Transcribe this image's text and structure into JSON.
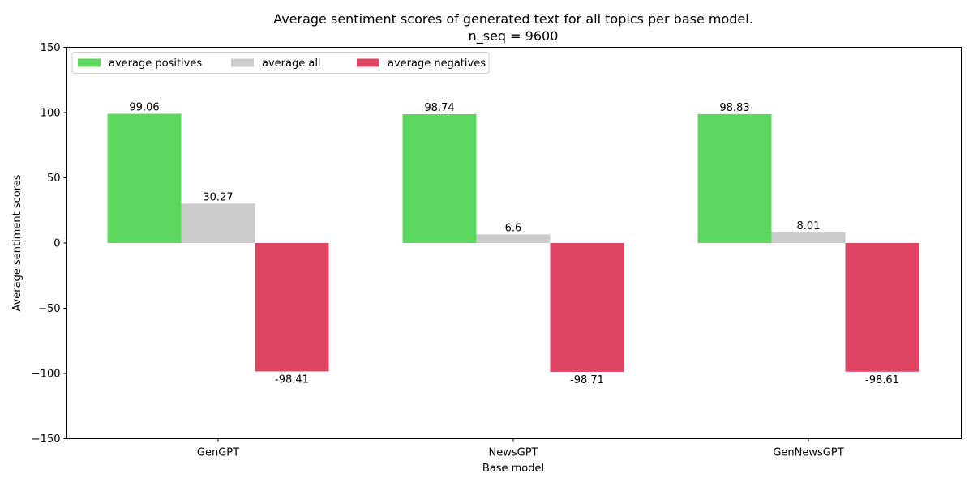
{
  "chart_data": {
    "type": "bar",
    "title": "Average sentiment scores of generated text for all topics per base model.",
    "subtitle": "n_seq = 9600",
    "xlabel": "Base model",
    "ylabel": "Average sentiment scores",
    "ylim": [
      -150,
      150
    ],
    "yticks": [
      -150,
      -100,
      -50,
      0,
      50,
      100,
      150
    ],
    "ytick_labels": [
      "−150",
      "−100",
      "−50",
      "0",
      "50",
      "100",
      "150"
    ],
    "categories": [
      "GenGPT",
      "NewsGPT",
      "GenNewsGPT"
    ],
    "series": [
      {
        "name": "average positives",
        "color": "#5cd85e",
        "values": [
          99.06,
          98.74,
          98.83
        ],
        "labels": [
          "99.06",
          "98.74",
          "98.83"
        ]
      },
      {
        "name": "average all",
        "color": "#cccccc",
        "values": [
          30.27,
          6.6,
          8.01
        ],
        "labels": [
          "30.27",
          "6.6",
          "8.01"
        ]
      },
      {
        "name": "average negatives",
        "color": "#e04463",
        "values": [
          -98.41,
          -98.71,
          -98.61
        ],
        "labels": [
          "-98.41",
          "-98.71",
          "-98.61"
        ]
      }
    ],
    "legend_position": "top-left",
    "grid": false
  }
}
